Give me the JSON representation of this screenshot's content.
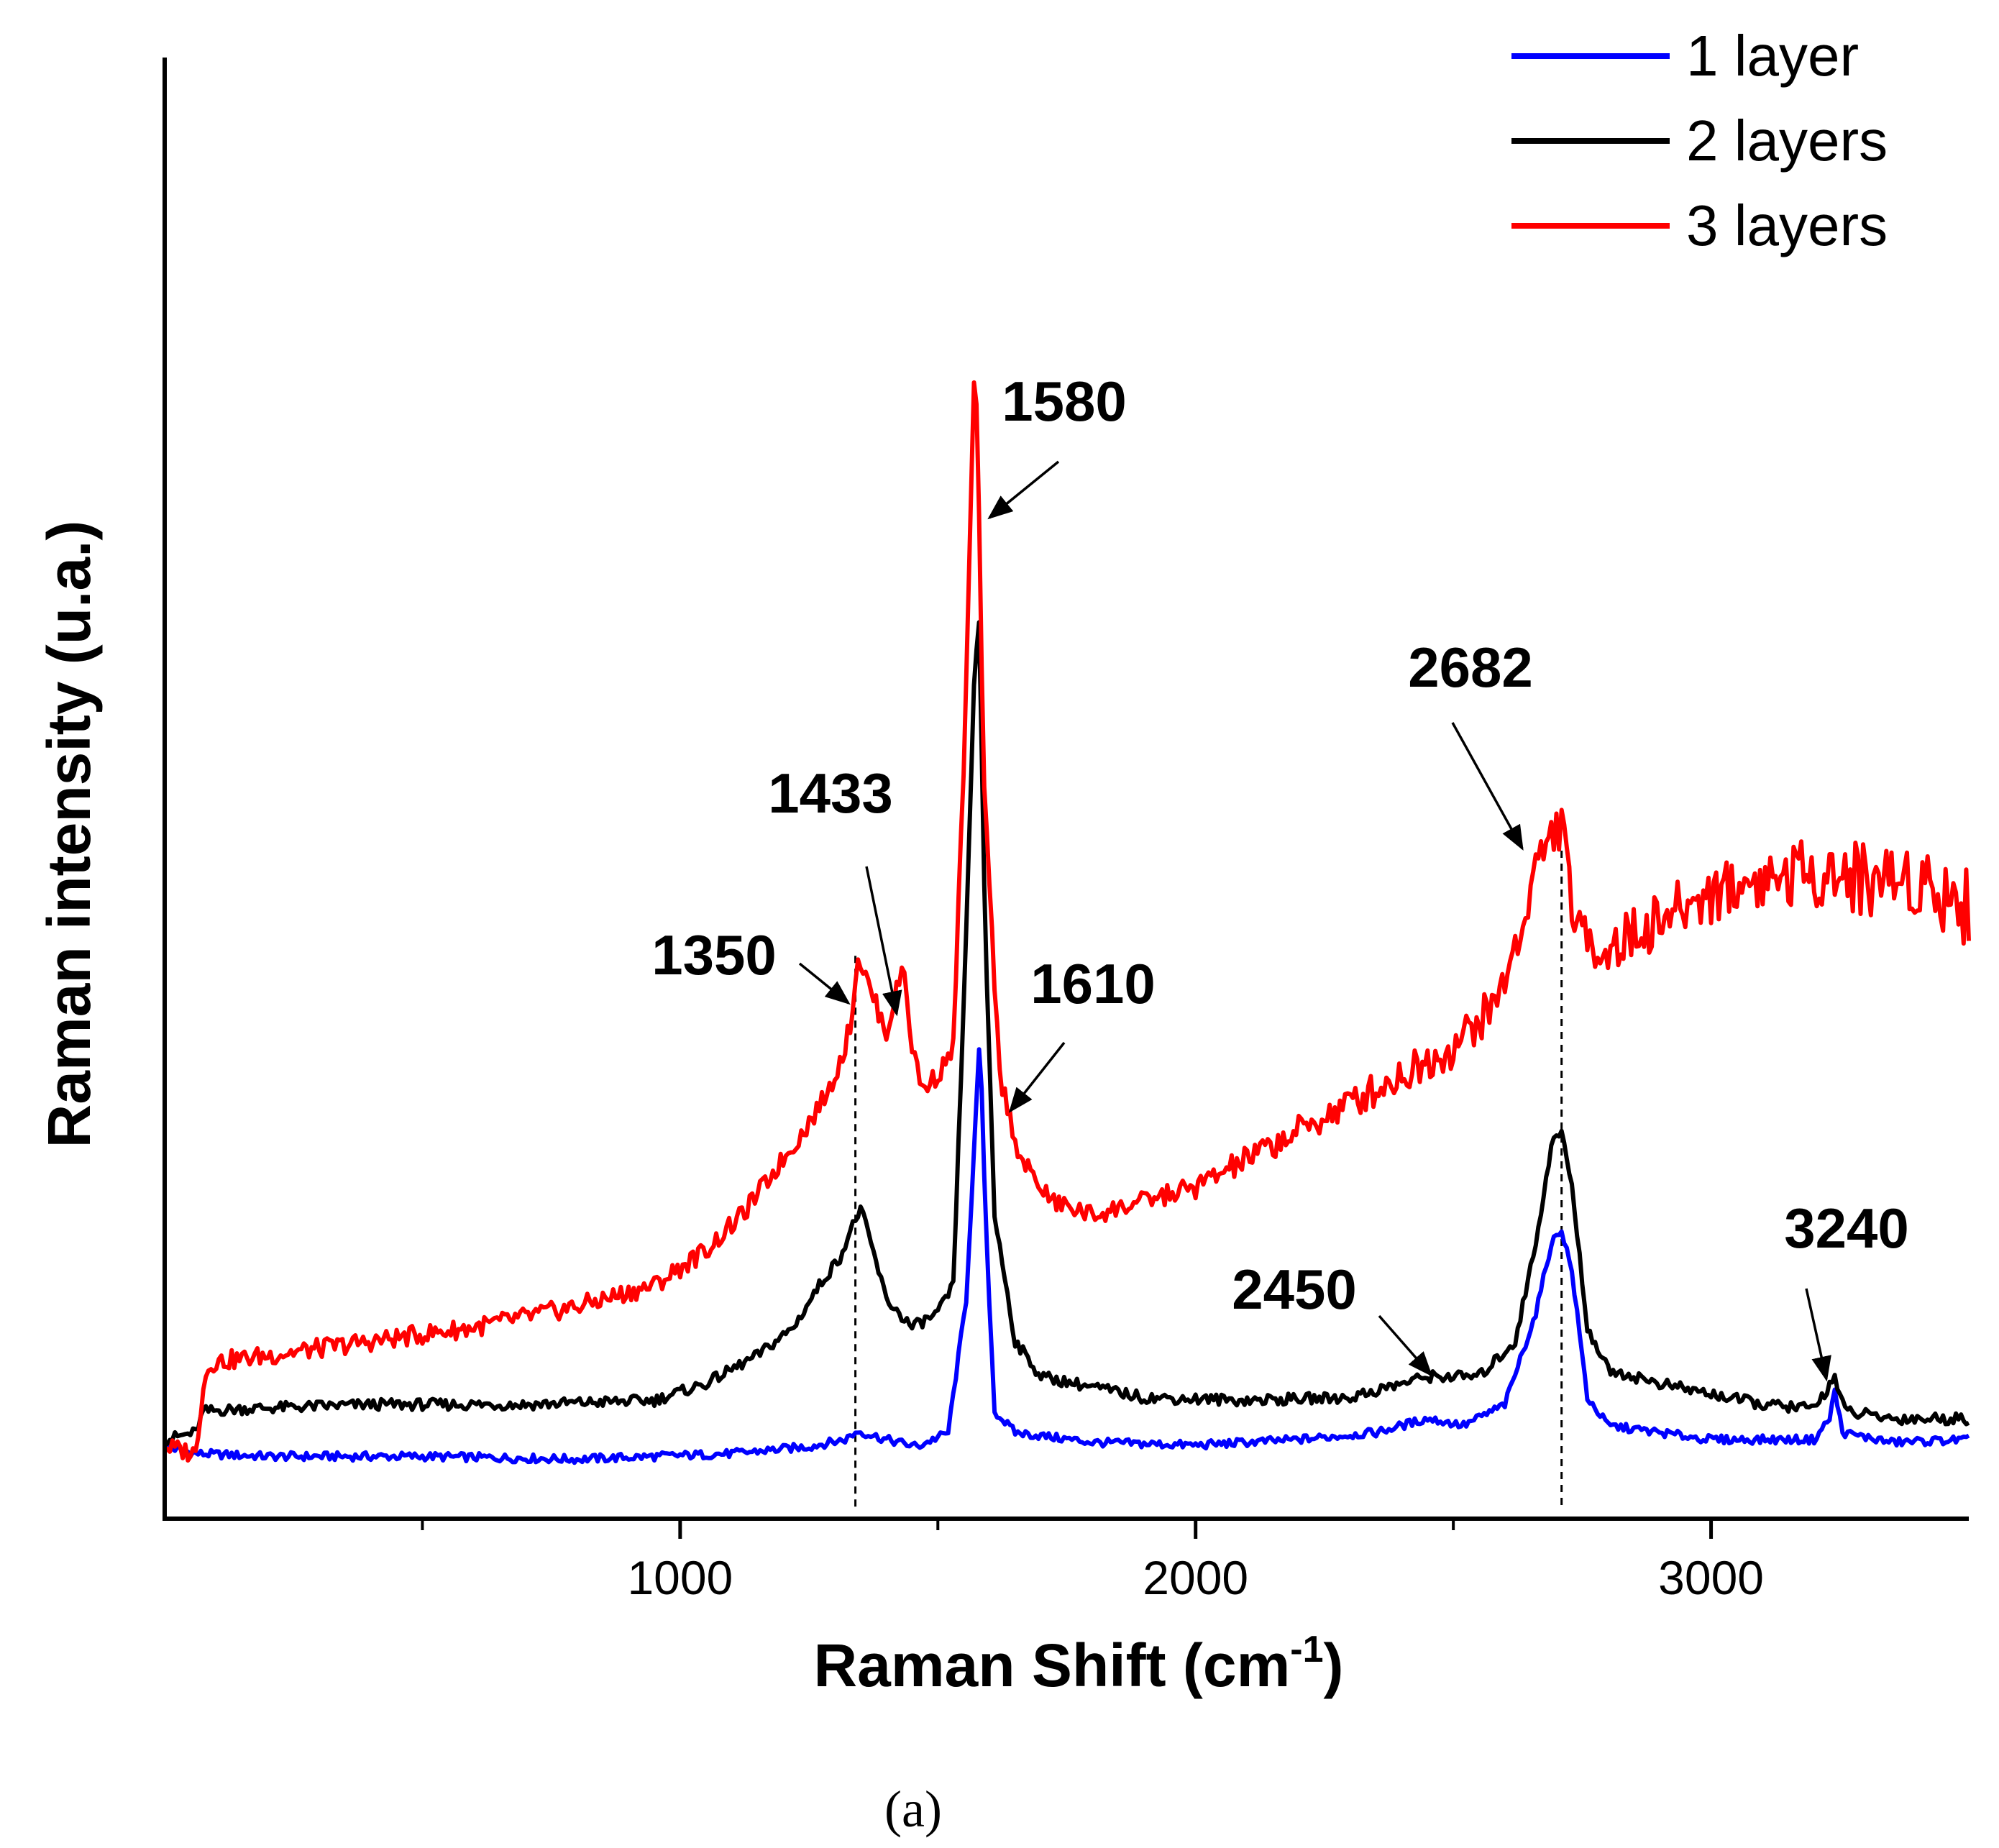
{
  "chart_data": {
    "type": "line",
    "title": "",
    "xlabel": "Raman Shift (cm",
    "xlabel_sup": "-1",
    "xlabel_close": ")",
    "ylabel": "Raman intensity (u.a.)",
    "xlim": [
      0,
      3500
    ],
    "ylim": [
      0,
      1000
    ],
    "x_ticks": [
      1000,
      2000,
      3000
    ],
    "x_minor_ticks": [
      500,
      1500,
      2500
    ],
    "x_tick_labels": [
      "1000",
      "2000",
      "3000"
    ],
    "y_ticks_shown": false,
    "grid": false,
    "legend_position": "top-right",
    "series": [
      {
        "name": "1 layer",
        "color": "#0000ff",
        "points": [
          [
            0,
            35
          ],
          [
            60,
            30
          ],
          [
            200,
            28
          ],
          [
            500,
            28
          ],
          [
            800,
            26
          ],
          [
            1100,
            30
          ],
          [
            1250,
            35
          ],
          [
            1320,
            40
          ],
          [
            1345,
            46
          ],
          [
            1400,
            40
          ],
          [
            1460,
            35
          ],
          [
            1520,
            45
          ],
          [
            1555,
            140
          ],
          [
            1575,
            280
          ],
          [
            1582,
            330
          ],
          [
            1592,
            200
          ],
          [
            1610,
            60
          ],
          [
            1650,
            45
          ],
          [
            1800,
            38
          ],
          [
            2000,
            36
          ],
          [
            2200,
            40
          ],
          [
            2350,
            45
          ],
          [
            2450,
            55
          ],
          [
            2520,
            50
          ],
          [
            2600,
            65
          ],
          [
            2660,
            130
          ],
          [
            2690,
            180
          ],
          [
            2710,
            190
          ],
          [
            2730,
            160
          ],
          [
            2760,
            70
          ],
          [
            2800,
            50
          ],
          [
            3000,
            40
          ],
          [
            3200,
            40
          ],
          [
            3230,
            55
          ],
          [
            3240,
            75
          ],
          [
            3255,
            45
          ],
          [
            3350,
            38
          ],
          [
            3500,
            40
          ]
        ]
      },
      {
        "name": "2 layers",
        "color": "#000000",
        "points": [
          [
            0,
            40
          ],
          [
            60,
            45
          ],
          [
            75,
            60
          ],
          [
            150,
            62
          ],
          [
            400,
            65
          ],
          [
            700,
            65
          ],
          [
            950,
            68
          ],
          [
            1050,
            80
          ],
          [
            1150,
            100
          ],
          [
            1220,
            120
          ],
          [
            1270,
            150
          ],
          [
            1310,
            170
          ],
          [
            1332,
            190
          ],
          [
            1350,
            205
          ],
          [
            1370,
            180
          ],
          [
            1400,
            140
          ],
          [
            1450,
            120
          ],
          [
            1500,
            130
          ],
          [
            1530,
            150
          ],
          [
            1555,
            400
          ],
          [
            1570,
            580
          ],
          [
            1580,
            620
          ],
          [
            1592,
            400
          ],
          [
            1610,
            200
          ],
          [
            1650,
            110
          ],
          [
            1700,
            85
          ],
          [
            1900,
            70
          ],
          [
            2100,
            68
          ],
          [
            2300,
            70
          ],
          [
            2450,
            85
          ],
          [
            2550,
            85
          ],
          [
            2620,
            110
          ],
          [
            2660,
            180
          ],
          [
            2690,
            250
          ],
          [
            2710,
            260
          ],
          [
            2730,
            220
          ],
          [
            2760,
            120
          ],
          [
            2800,
            90
          ],
          [
            2900,
            80
          ],
          [
            3100,
            65
          ],
          [
            3200,
            62
          ],
          [
            3240,
            85
          ],
          [
            3260,
            60
          ],
          [
            3350,
            55
          ],
          [
            3500,
            55
          ]
        ]
      },
      {
        "name": "3 layers",
        "color": "#ff0000",
        "points": [
          [
            0,
            35
          ],
          [
            60,
            30
          ],
          [
            75,
            80
          ],
          [
            90,
            95
          ],
          [
            200,
            100
          ],
          [
            400,
            110
          ],
          [
            600,
            120
          ],
          [
            800,
            135
          ],
          [
            950,
            150
          ],
          [
            1050,
            175
          ],
          [
            1120,
            200
          ],
          [
            1180,
            230
          ],
          [
            1240,
            260
          ],
          [
            1290,
            290
          ],
          [
            1320,
            320
          ],
          [
            1332,
            340
          ],
          [
            1345,
            385
          ],
          [
            1370,
            360
          ],
          [
            1400,
            330
          ],
          [
            1420,
            360
          ],
          [
            1433,
            380
          ],
          [
            1450,
            320
          ],
          [
            1470,
            290
          ],
          [
            1500,
            300
          ],
          [
            1530,
            320
          ],
          [
            1553,
            550
          ],
          [
            1565,
            720
          ],
          [
            1570,
            795
          ],
          [
            1576,
            770
          ],
          [
            1590,
            500
          ],
          [
            1620,
            300
          ],
          [
            1660,
            240
          ],
          [
            1720,
            210
          ],
          [
            1800,
            200
          ],
          [
            1900,
            210
          ],
          [
            2000,
            220
          ],
          [
            2100,
            240
          ],
          [
            2200,
            260
          ],
          [
            2300,
            280
          ],
          [
            2400,
            300
          ],
          [
            2500,
            320
          ],
          [
            2580,
            350
          ],
          [
            2630,
            400
          ],
          [
            2660,
            450
          ],
          [
            2690,
            470
          ],
          [
            2710,
            480
          ],
          [
            2720,
            450
          ],
          [
            2740,
            400
          ],
          [
            2800,
            390
          ],
          [
            2900,
            410
          ],
          [
            3000,
            430
          ],
          [
            3100,
            440
          ],
          [
            3200,
            445
          ],
          [
            3300,
            440
          ],
          [
            3400,
            440
          ],
          [
            3500,
            420
          ]
        ]
      }
    ],
    "annotations": [
      {
        "label": "1580",
        "peak": [
          1570,
          795
        ]
      },
      {
        "label": "1433",
        "peak": [
          1433,
          380
        ]
      },
      {
        "label": "1350",
        "peak": [
          1340,
          385
        ]
      },
      {
        "label": "1610",
        "peak": [
          1610,
          270
        ]
      },
      {
        "label": "2682",
        "peak": [
          2675,
          460
        ]
      },
      {
        "label": "2450",
        "peak": [
          2450,
          90
        ]
      },
      {
        "label": "3240",
        "peak": [
          3240,
          90
        ]
      }
    ],
    "reference_lines": [
      1340,
      2710
    ],
    "legend": [
      "1 layer",
      "2 layers",
      "3 layers"
    ]
  },
  "caption": "(a)"
}
